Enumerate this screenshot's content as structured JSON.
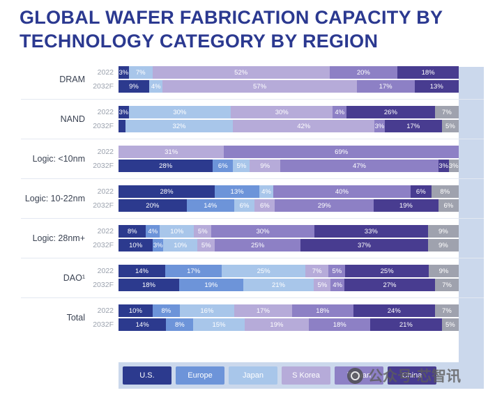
{
  "title": "GLOBAL WAFER FABRICATION CAPACITY BY TECHNOLOGY CATEGORY BY REGION",
  "watermark": {
    "text": "公众号·芯智讯",
    "logo": "aperture-icon"
  },
  "colors": {
    "U.S.": "#2c3a8e",
    "Europe": "#6d94d9",
    "Japan": "#a8c6ea",
    "S Korea": "#b6abd9",
    "Taiwan": "#8d80c5",
    "China": "#483c90",
    "Other": "#9fa2ae",
    "panel": "#cbd8ec",
    "title": "#2b3990"
  },
  "legend": {
    "items": [
      {
        "label": "U.S."
      },
      {
        "label": "Europe"
      },
      {
        "label": "Japan"
      },
      {
        "label": "S Korea"
      },
      {
        "label": "Taiwan"
      },
      {
        "label": "China"
      }
    ]
  },
  "chart_data": {
    "type": "bar",
    "stacked": true,
    "orientation": "horizontal",
    "unit": "%",
    "x_axis": {
      "min": 0,
      "max": 100,
      "unit": "%",
      "grid": false
    },
    "years": [
      "2022",
      "2032F"
    ],
    "regions": [
      "U.S.",
      "Europe",
      "Japan",
      "S Korea",
      "Taiwan",
      "China",
      "Other"
    ],
    "groups": [
      {
        "category": "DRAM",
        "rows": [
          {
            "year": "2022",
            "segments": [
              {
                "region": "U.S.",
                "value": 3,
                "label": "3%"
              },
              {
                "region": "Japan",
                "value": 7,
                "label": "7%"
              },
              {
                "region": "S Korea",
                "value": 52,
                "label": "52%"
              },
              {
                "region": "Taiwan",
                "value": 20,
                "label": "20%"
              },
              {
                "region": "China",
                "value": 18,
                "label": "18%"
              }
            ]
          },
          {
            "year": "2032F",
            "segments": [
              {
                "region": "U.S.",
                "value": 9,
                "label": "9%"
              },
              {
                "region": "Japan",
                "value": 4,
                "label": "4%"
              },
              {
                "region": "S Korea",
                "value": 57,
                "label": "57%"
              },
              {
                "region": "Taiwan",
                "value": 17,
                "label": "17%"
              },
              {
                "region": "China",
                "value": 13,
                "label": "13%"
              }
            ]
          }
        ]
      },
      {
        "category": "NAND",
        "rows": [
          {
            "year": "2022",
            "segments": [
              {
                "region": "U.S.",
                "value": 3,
                "label": "3%"
              },
              {
                "region": "Japan",
                "value": 30,
                "label": "30%"
              },
              {
                "region": "S Korea",
                "value": 30,
                "label": "30%"
              },
              {
                "region": "Taiwan",
                "value": 4,
                "label": "4%"
              },
              {
                "region": "China",
                "value": 26,
                "label": "26%"
              },
              {
                "region": "Other",
                "value": 7,
                "label": "7%"
              }
            ]
          },
          {
            "year": "2032F",
            "segments": [
              {
                "region": "U.S.",
                "value": 2,
                "label": ""
              },
              {
                "region": "Japan",
                "value": 32,
                "label": "32%"
              },
              {
                "region": "S Korea",
                "value": 42,
                "label": "42%"
              },
              {
                "region": "Taiwan",
                "value": 3,
                "label": "3%"
              },
              {
                "region": "China",
                "value": 17,
                "label": "17%"
              },
              {
                "region": "Other",
                "value": 5,
                "label": "5%"
              }
            ]
          }
        ]
      },
      {
        "category": "Logic: <10nm",
        "rows": [
          {
            "year": "2022",
            "segments": [
              {
                "region": "S Korea",
                "value": 31,
                "label": "31%"
              },
              {
                "region": "Taiwan",
                "value": 69,
                "label": "69%"
              }
            ]
          },
          {
            "year": "2032F",
            "segments": [
              {
                "region": "U.S.",
                "value": 28,
                "label": "28%"
              },
              {
                "region": "Europe",
                "value": 6,
                "label": "6%"
              },
              {
                "region": "Japan",
                "value": 5,
                "label": "5%"
              },
              {
                "region": "S Korea",
                "value": 9,
                "label": "9%"
              },
              {
                "region": "Taiwan",
                "value": 47,
                "label": "47%"
              },
              {
                "region": "China",
                "value": 3,
                "label": "3%"
              },
              {
                "region": "Other",
                "value": 3,
                "label": "3%"
              }
            ]
          }
        ]
      },
      {
        "category": "Logic: 10-22nm",
        "rows": [
          {
            "year": "2022",
            "segments": [
              {
                "region": "U.S.",
                "value": 28,
                "label": "28%"
              },
              {
                "region": "Europe",
                "value": 13,
                "label": "13%"
              },
              {
                "region": "Japan",
                "value": 4,
                "label": "4%"
              },
              {
                "region": "Taiwan",
                "value": 40,
                "label": "40%"
              },
              {
                "region": "China",
                "value": 6,
                "label": "6%"
              },
              {
                "region": "Other",
                "value": 8,
                "label": "8%"
              }
            ]
          },
          {
            "year": "2032F",
            "segments": [
              {
                "region": "U.S.",
                "value": 20,
                "label": "20%"
              },
              {
                "region": "Europe",
                "value": 14,
                "label": "14%"
              },
              {
                "region": "Japan",
                "value": 6,
                "label": "6%"
              },
              {
                "region": "S Korea",
                "value": 6,
                "label": "6%"
              },
              {
                "region": "Taiwan",
                "value": 29,
                "label": "29%"
              },
              {
                "region": "China",
                "value": 19,
                "label": "19%"
              },
              {
                "region": "Other",
                "value": 6,
                "label": "6%"
              }
            ]
          }
        ]
      },
      {
        "category": "Logic: 28nm+",
        "rows": [
          {
            "year": "2022",
            "segments": [
              {
                "region": "U.S.",
                "value": 8,
                "label": "8%"
              },
              {
                "region": "Europe",
                "value": 4,
                "label": "4%"
              },
              {
                "region": "Japan",
                "value": 10,
                "label": "10%"
              },
              {
                "region": "S Korea",
                "value": 5,
                "label": "5%"
              },
              {
                "region": "Taiwan",
                "value": 30,
                "label": "30%"
              },
              {
                "region": "China",
                "value": 33,
                "label": "33%"
              },
              {
                "region": "Other",
                "value": 9,
                "label": "9%"
              }
            ]
          },
          {
            "year": "2032F",
            "segments": [
              {
                "region": "U.S.",
                "value": 10,
                "label": "10%"
              },
              {
                "region": "Europe",
                "value": 3,
                "label": "3%"
              },
              {
                "region": "Japan",
                "value": 10,
                "label": "10%"
              },
              {
                "region": "S Korea",
                "value": 5,
                "label": "5%"
              },
              {
                "region": "Taiwan",
                "value": 25,
                "label": "25%"
              },
              {
                "region": "China",
                "value": 37,
                "label": "37%"
              },
              {
                "region": "Other",
                "value": 9,
                "label": "9%"
              }
            ]
          }
        ]
      },
      {
        "category": "DAO¹",
        "rows": [
          {
            "year": "2022",
            "segments": [
              {
                "region": "U.S.",
                "value": 14,
                "label": "14%"
              },
              {
                "region": "Europe",
                "value": 17,
                "label": "17%"
              },
              {
                "region": "Japan",
                "value": 25,
                "label": "25%"
              },
              {
                "region": "S Korea",
                "value": 7,
                "label": "7%"
              },
              {
                "region": "Taiwan",
                "value": 5,
                "label": "5%"
              },
              {
                "region": "China",
                "value": 25,
                "label": "25%"
              },
              {
                "region": "Other",
                "value": 9,
                "label": "9%"
              }
            ]
          },
          {
            "year": "2032F",
            "segments": [
              {
                "region": "U.S.",
                "value": 18,
                "label": "18%"
              },
              {
                "region": "Europe",
                "value": 19,
                "label": "19%"
              },
              {
                "region": "Japan",
                "value": 21,
                "label": "21%"
              },
              {
                "region": "S Korea",
                "value": 5,
                "label": "5%"
              },
              {
                "region": "Taiwan",
                "value": 4,
                "label": "4%"
              },
              {
                "region": "China",
                "value": 27,
                "label": "27%"
              },
              {
                "region": "Other",
                "value": 7,
                "label": "7%"
              }
            ]
          }
        ]
      },
      {
        "category": "Total",
        "rows": [
          {
            "year": "2022",
            "segments": [
              {
                "region": "U.S.",
                "value": 10,
                "label": "10%"
              },
              {
                "region": "Europe",
                "value": 8,
                "label": "8%"
              },
              {
                "region": "Japan",
                "value": 16,
                "label": "16%"
              },
              {
                "region": "S Korea",
                "value": 17,
                "label": "17%"
              },
              {
                "region": "Taiwan",
                "value": 18,
                "label": "18%"
              },
              {
                "region": "China",
                "value": 24,
                "label": "24%"
              },
              {
                "region": "Other",
                "value": 7,
                "label": "7%"
              }
            ]
          },
          {
            "year": "2032F",
            "segments": [
              {
                "region": "U.S.",
                "value": 14,
                "label": "14%"
              },
              {
                "region": "Europe",
                "value": 8,
                "label": "8%"
              },
              {
                "region": "Japan",
                "value": 15,
                "label": "15%"
              },
              {
                "region": "S Korea",
                "value": 19,
                "label": "19%"
              },
              {
                "region": "Taiwan",
                "value": 18,
                "label": "18%"
              },
              {
                "region": "China",
                "value": 21,
                "label": "21%"
              },
              {
                "region": "Other",
                "value": 5,
                "label": "5%"
              }
            ]
          }
        ]
      }
    ]
  }
}
